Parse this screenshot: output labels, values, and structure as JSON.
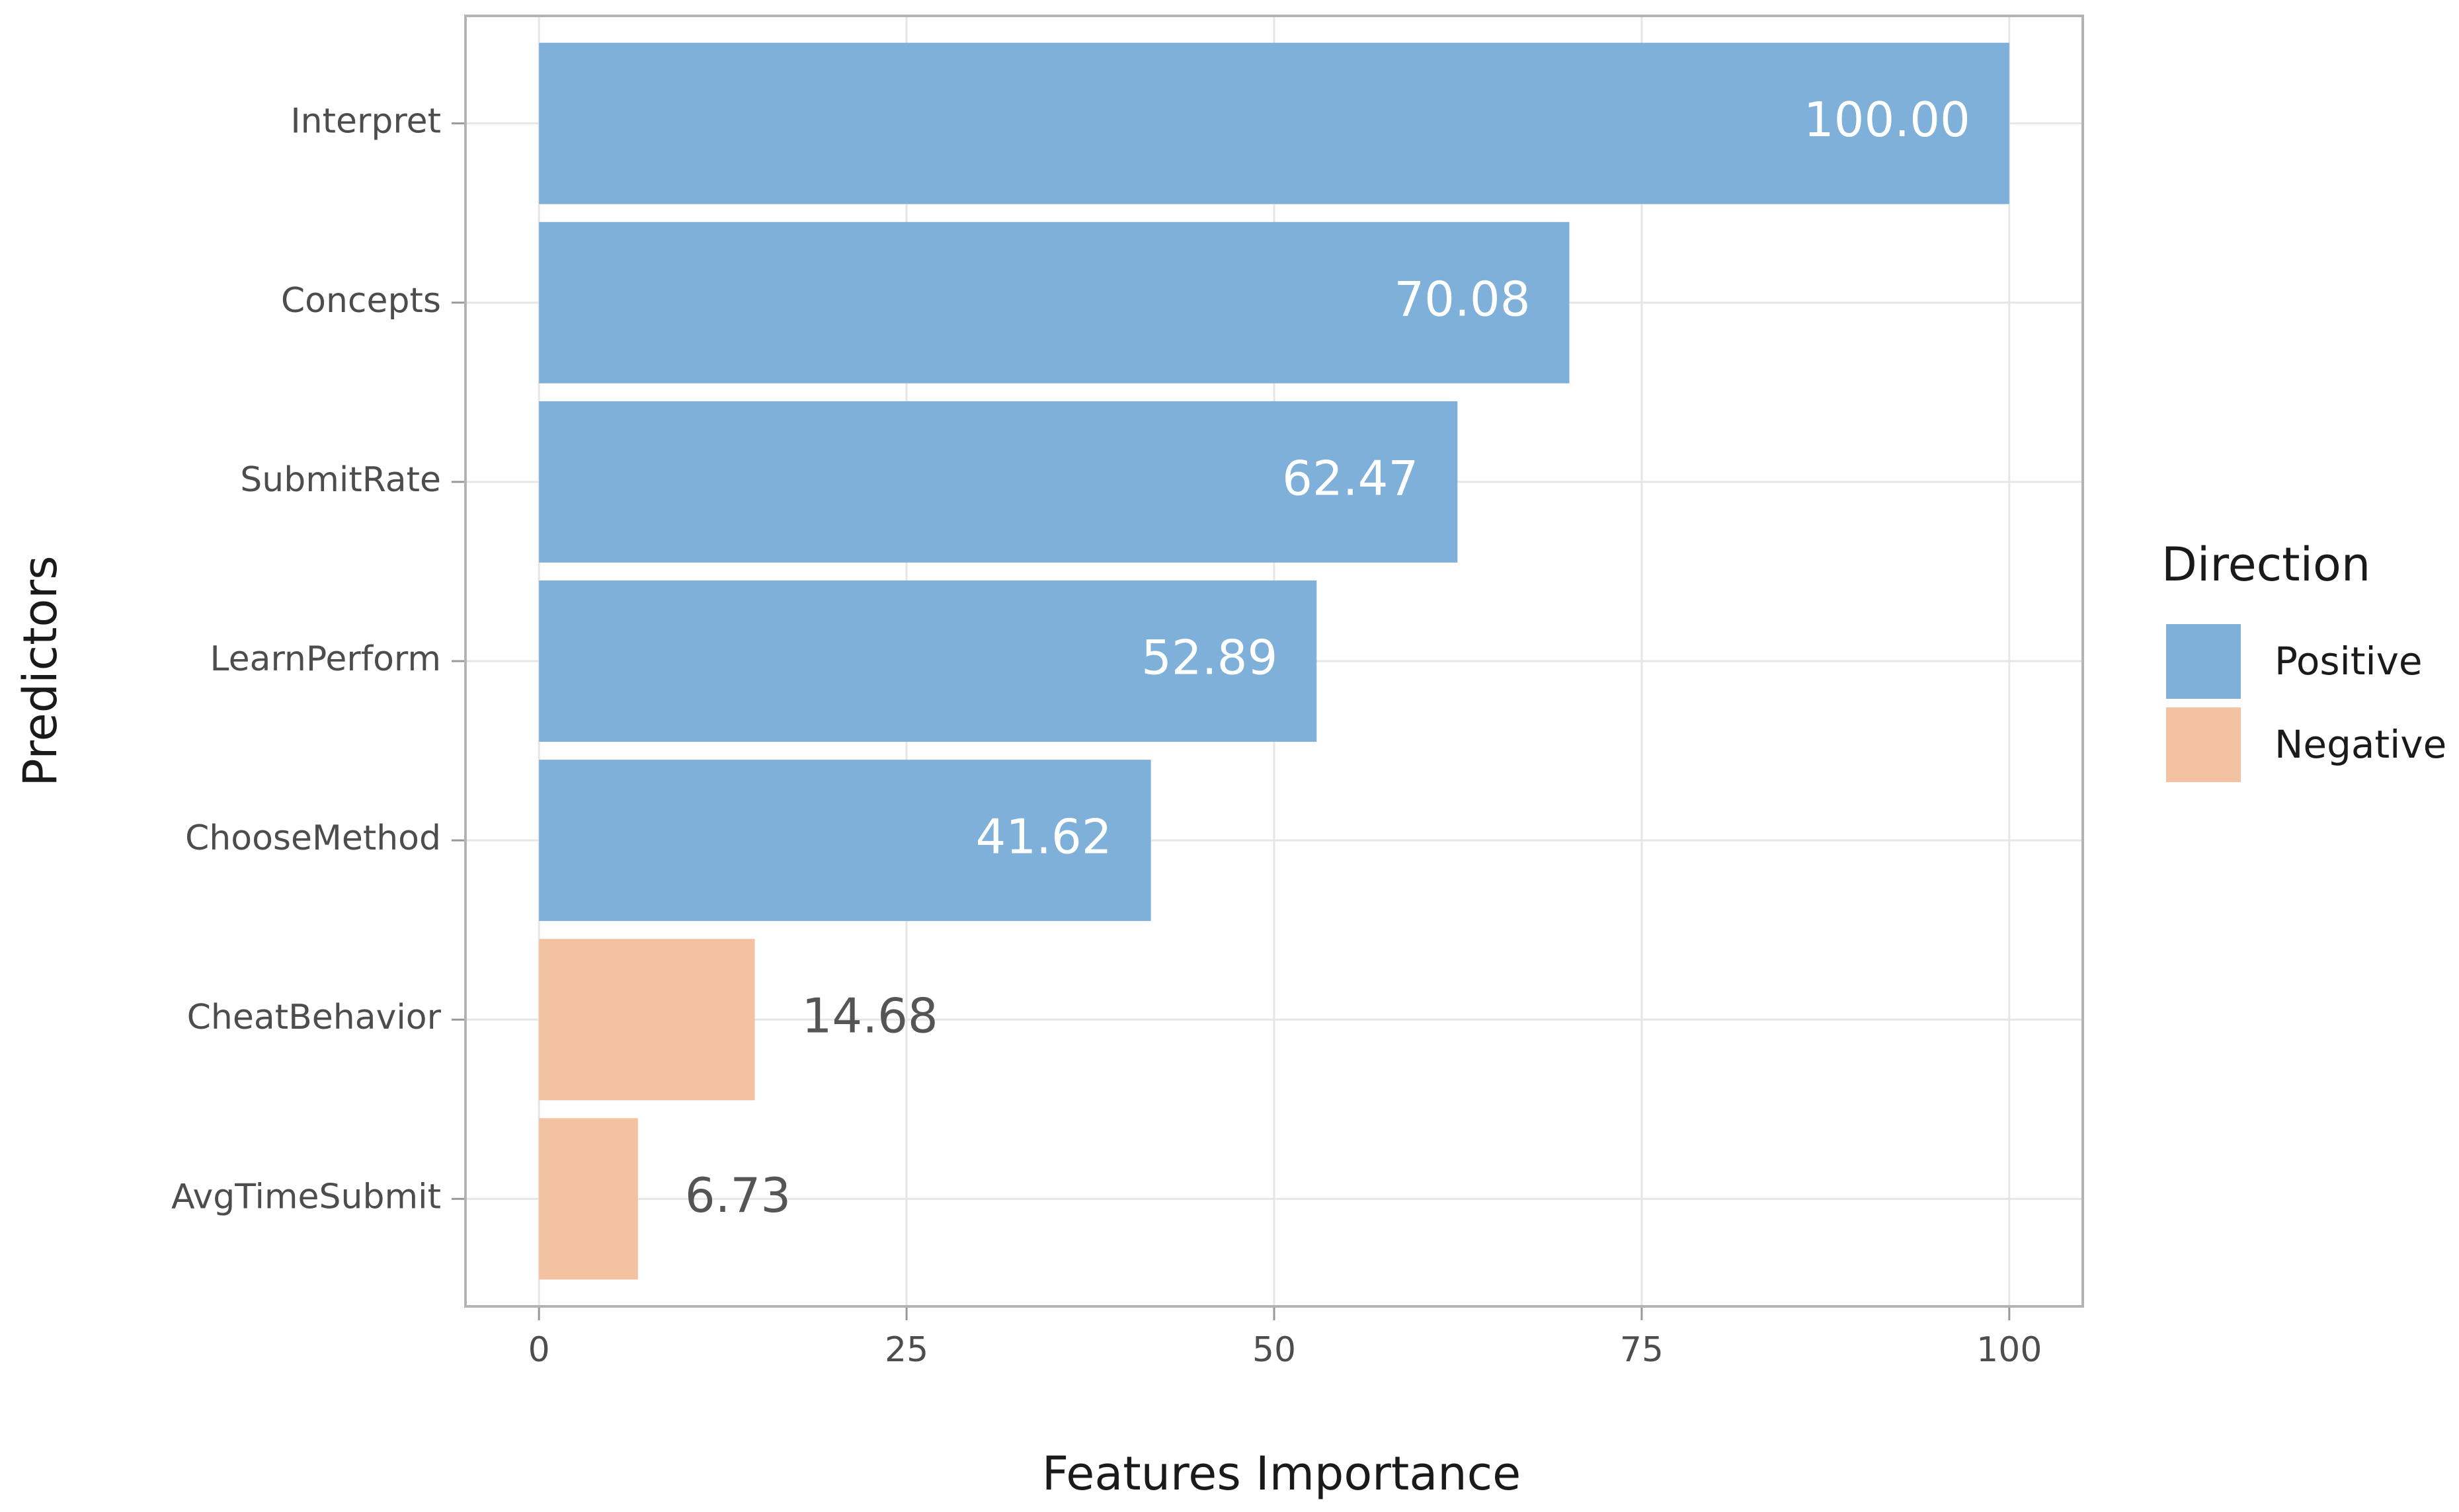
{
  "chart_data": {
    "type": "bar",
    "orientation": "horizontal",
    "xlabel": "Features Importance",
    "ylabel": "Predictors",
    "categories": [
      "Interpret",
      "Concepts",
      "SubmitRate",
      "LearnPerform",
      "ChooseMethod",
      "CheatBehavior",
      "AvgTimeSubmit"
    ],
    "series": [
      {
        "name": "Positive",
        "color": "#7eb0d9",
        "values": [
          100,
          70.08,
          62.47,
          52.89,
          41.62,
          null,
          null
        ],
        "value_labels": [
          "100.00",
          "70.08",
          "62.47",
          "52.89",
          "41.62",
          null,
          null
        ]
      },
      {
        "name": "Negative",
        "color": "#f3c2a0",
        "values": [
          null,
          null,
          null,
          null,
          null,
          14.68,
          6.73
        ],
        "value_labels": [
          null,
          null,
          null,
          null,
          null,
          "14.68",
          "6.73"
        ]
      }
    ],
    "legend_title": "Direction",
    "legend": "right",
    "xlim": [
      -5,
      105
    ],
    "xticks": [
      0,
      25,
      50,
      75,
      100
    ],
    "grid": true
  }
}
